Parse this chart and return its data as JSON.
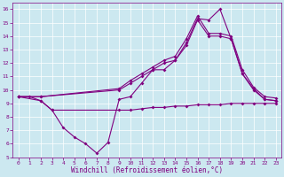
{
  "xlabel": "Windchill (Refroidissement éolien,°C)",
  "bg_color": "#cce8f0",
  "line_color": "#800080",
  "xlim": [
    -0.5,
    23.5
  ],
  "ylim": [
    5,
    16.5
  ],
  "xticks": [
    0,
    1,
    2,
    3,
    4,
    5,
    6,
    7,
    8,
    9,
    10,
    11,
    12,
    13,
    14,
    15,
    16,
    17,
    18,
    19,
    20,
    21,
    22,
    23
  ],
  "yticks": [
    5,
    6,
    7,
    8,
    9,
    10,
    11,
    12,
    13,
    14,
    15,
    16
  ],
  "line1_x": [
    0,
    1,
    2,
    3,
    4,
    5,
    6,
    7,
    8,
    9,
    10,
    11,
    12,
    13,
    14,
    15,
    16,
    17,
    18,
    19,
    20,
    21,
    22,
    23
  ],
  "line1_y": [
    9.5,
    9.5,
    9.2,
    8.5,
    7.2,
    6.5,
    6.0,
    5.3,
    6.1,
    9.3,
    9.5,
    10.5,
    11.5,
    11.5,
    12.2,
    13.5,
    15.3,
    15.2,
    16.0,
    13.8,
    11.2,
    10.0,
    9.3,
    9.2
  ],
  "line2_x": [
    0,
    2,
    3,
    9,
    10,
    11,
    12,
    13,
    14,
    15,
    16,
    17,
    18,
    19,
    20,
    21,
    22,
    23
  ],
  "line2_y": [
    9.5,
    9.2,
    8.5,
    8.5,
    8.5,
    8.6,
    8.7,
    8.7,
    8.8,
    8.8,
    8.9,
    8.9,
    8.9,
    9.0,
    9.0,
    9.0,
    9.0,
    9.0
  ],
  "line3_x": [
    0,
    2,
    9,
    10,
    11,
    12,
    13,
    14,
    15,
    16,
    17,
    18,
    19,
    20,
    21,
    22,
    23
  ],
  "line3_y": [
    9.5,
    9.5,
    10.0,
    10.5,
    11.0,
    11.5,
    12.0,
    12.2,
    13.3,
    15.2,
    14.0,
    14.0,
    13.8,
    11.2,
    10.1,
    9.3,
    9.2
  ],
  "line4_x": [
    0,
    2,
    9,
    10,
    11,
    12,
    13,
    14,
    15,
    16,
    17,
    18,
    19,
    20,
    21,
    22,
    23
  ],
  "line4_y": [
    9.5,
    9.5,
    10.1,
    10.7,
    11.2,
    11.7,
    12.2,
    12.5,
    13.8,
    15.5,
    14.2,
    14.2,
    14.0,
    11.5,
    10.2,
    9.5,
    9.4
  ]
}
